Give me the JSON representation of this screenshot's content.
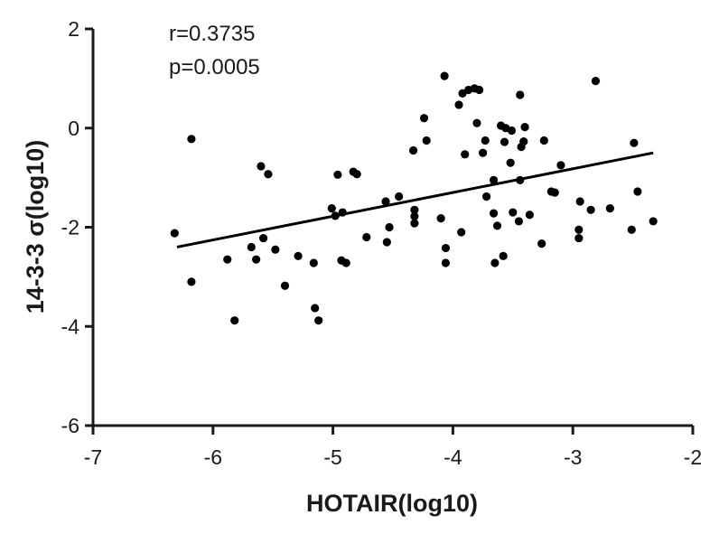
{
  "chart_data": {
    "type": "scatter",
    "xlabel": "HOTAIR(log10)",
    "ylabel": "14-3-3 σ(log10)",
    "xlim": [
      -7,
      -2
    ],
    "ylim": [
      -6,
      2
    ],
    "xticks": [
      -7,
      -6,
      -5,
      -4,
      -3,
      -2
    ],
    "yticks": [
      2,
      0,
      -2,
      -4,
      -6
    ],
    "xtick_labels": [
      "-7",
      "-6",
      "-5",
      "-4",
      "-3",
      "-2"
    ],
    "ytick_labels": [
      "2",
      "0",
      "-2",
      "-4",
      "-6"
    ],
    "annotations": [
      "r=0.3735",
      "p=0.0005"
    ],
    "grid": false,
    "regression_line": {
      "x": [
        -6.3,
        -2.33
      ],
      "y": [
        -2.4,
        -0.5
      ]
    },
    "points": [
      {
        "x": -6.32,
        "y": -2.12
      },
      {
        "x": -6.18,
        "y": -0.22
      },
      {
        "x": -6.18,
        "y": -3.1
      },
      {
        "x": -5.88,
        "y": -2.65
      },
      {
        "x": -5.82,
        "y": -3.88
      },
      {
        "x": -5.68,
        "y": -2.4
      },
      {
        "x": -5.64,
        "y": -2.65
      },
      {
        "x": -5.6,
        "y": -0.77
      },
      {
        "x": -5.58,
        "y": -2.22
      },
      {
        "x": -5.54,
        "y": -0.93
      },
      {
        "x": -5.48,
        "y": -2.45
      },
      {
        "x": -5.4,
        "y": -3.18
      },
      {
        "x": -5.29,
        "y": -2.58
      },
      {
        "x": -5.16,
        "y": -2.72
      },
      {
        "x": -5.15,
        "y": -3.63
      },
      {
        "x": -5.12,
        "y": -3.88
      },
      {
        "x": -5.01,
        "y": -1.62
      },
      {
        "x": -4.98,
        "y": -1.77
      },
      {
        "x": -4.96,
        "y": -0.94
      },
      {
        "x": -4.93,
        "y": -2.67
      },
      {
        "x": -4.92,
        "y": -1.7
      },
      {
        "x": -4.89,
        "y": -2.72
      },
      {
        "x": -4.83,
        "y": -0.88
      },
      {
        "x": -4.8,
        "y": -0.93
      },
      {
        "x": -4.72,
        "y": -2.2
      },
      {
        "x": -4.56,
        "y": -1.48
      },
      {
        "x": -4.55,
        "y": -2.3
      },
      {
        "x": -4.53,
        "y": -2.0
      },
      {
        "x": -4.45,
        "y": -1.38
      },
      {
        "x": -4.33,
        "y": -0.45
      },
      {
        "x": -4.32,
        "y": -1.65
      },
      {
        "x": -4.32,
        "y": -1.78
      },
      {
        "x": -4.32,
        "y": -1.92
      },
      {
        "x": -4.24,
        "y": 0.2
      },
      {
        "x": -4.22,
        "y": -0.25
      },
      {
        "x": -4.1,
        "y": -1.82
      },
      {
        "x": -4.07,
        "y": 1.05
      },
      {
        "x": -4.06,
        "y": -2.42
      },
      {
        "x": -4.06,
        "y": -2.72
      },
      {
        "x": -3.95,
        "y": 0.47
      },
      {
        "x": -3.93,
        "y": -2.1
      },
      {
        "x": -3.92,
        "y": 0.7
      },
      {
        "x": -3.9,
        "y": -0.53
      },
      {
        "x": -3.87,
        "y": 0.77
      },
      {
        "x": -3.82,
        "y": 0.8
      },
      {
        "x": -3.8,
        "y": 0.1
      },
      {
        "x": -3.78,
        "y": 0.77
      },
      {
        "x": -3.75,
        "y": -0.5
      },
      {
        "x": -3.73,
        "y": -0.25
      },
      {
        "x": -3.72,
        "y": -1.38
      },
      {
        "x": -3.66,
        "y": -1.05
      },
      {
        "x": -3.66,
        "y": -1.72
      },
      {
        "x": -3.65,
        "y": -2.72
      },
      {
        "x": -3.63,
        "y": -1.97
      },
      {
        "x": -3.6,
        "y": 0.05
      },
      {
        "x": -3.58,
        "y": -2.58
      },
      {
        "x": -3.57,
        "y": -0.28
      },
      {
        "x": -3.56,
        "y": 0.0
      },
      {
        "x": -3.52,
        "y": -0.7
      },
      {
        "x": -3.51,
        "y": -0.05
      },
      {
        "x": -3.5,
        "y": -1.7
      },
      {
        "x": -3.45,
        "y": -1.88
      },
      {
        "x": -3.44,
        "y": -1.05
      },
      {
        "x": -3.44,
        "y": 0.67
      },
      {
        "x": -3.43,
        "y": -0.38
      },
      {
        "x": -3.41,
        "y": -0.27
      },
      {
        "x": -3.4,
        "y": 0.02
      },
      {
        "x": -3.36,
        "y": -1.75
      },
      {
        "x": -3.26,
        "y": -2.33
      },
      {
        "x": -3.24,
        "y": -0.25
      },
      {
        "x": -3.18,
        "y": -1.28
      },
      {
        "x": -3.15,
        "y": -1.3
      },
      {
        "x": -3.1,
        "y": -0.75
      },
      {
        "x": -2.95,
        "y": -2.05
      },
      {
        "x": -2.95,
        "y": -2.22
      },
      {
        "x": -2.94,
        "y": -1.48
      },
      {
        "x": -2.85,
        "y": -1.65
      },
      {
        "x": -2.81,
        "y": 0.95
      },
      {
        "x": -2.69,
        "y": -1.62
      },
      {
        "x": -2.51,
        "y": -2.05
      },
      {
        "x": -2.49,
        "y": -0.3
      },
      {
        "x": -2.46,
        "y": -1.28
      },
      {
        "x": -2.33,
        "y": -1.88
      }
    ]
  }
}
